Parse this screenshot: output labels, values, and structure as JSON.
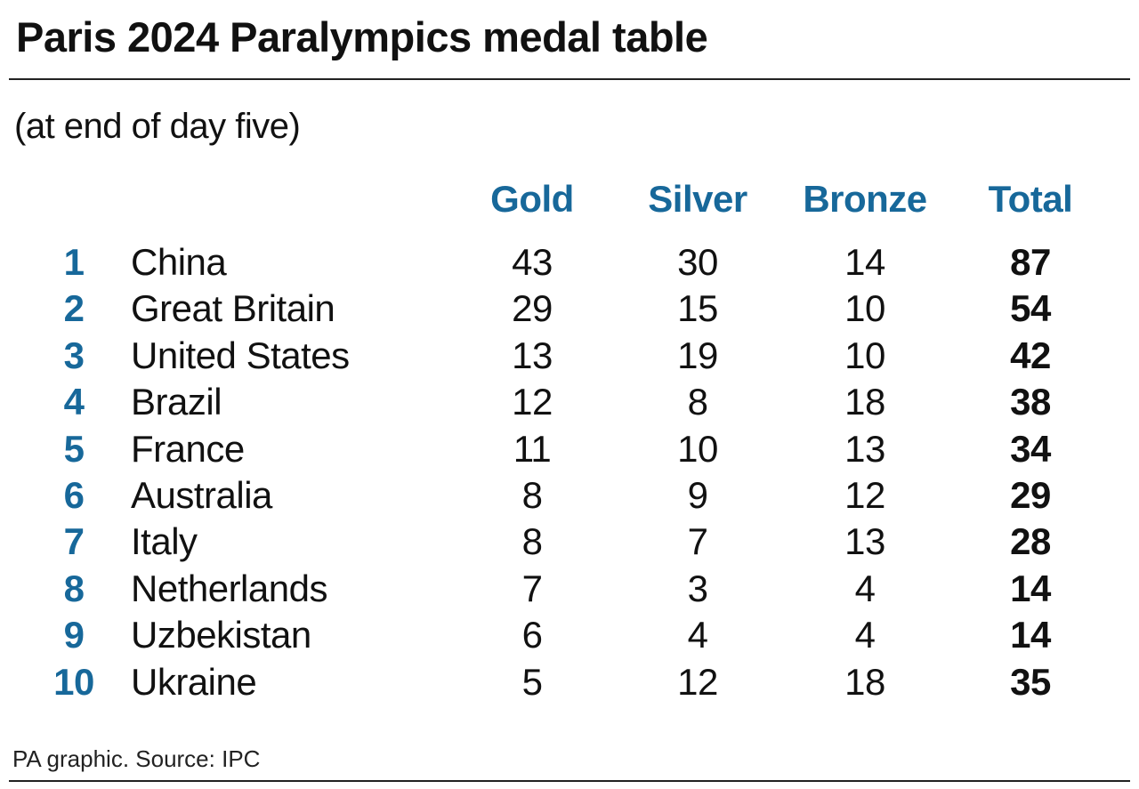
{
  "title": "Paris 2024 Paralympics medal table",
  "subtitle": "(at end of day five)",
  "footer": "PA graphic. Source: IPC",
  "colors": {
    "accent": "#17689a",
    "text": "#111111"
  },
  "chart_data": {
    "type": "table",
    "columns": [
      "Gold",
      "Silver",
      "Bronze",
      "Total"
    ],
    "rows": [
      {
        "rank": "1",
        "country": "China",
        "gold": "43",
        "silver": "30",
        "bronze": "14",
        "total": "87"
      },
      {
        "rank": "2",
        "country": "Great Britain",
        "gold": "29",
        "silver": "15",
        "bronze": "10",
        "total": "54"
      },
      {
        "rank": "3",
        "country": "United States",
        "gold": "13",
        "silver": "19",
        "bronze": "10",
        "total": "42"
      },
      {
        "rank": "4",
        "country": "Brazil",
        "gold": "12",
        "silver": "8",
        "bronze": "18",
        "total": "38"
      },
      {
        "rank": "5",
        "country": "France",
        "gold": "11",
        "silver": "10",
        "bronze": "13",
        "total": "34"
      },
      {
        "rank": "6",
        "country": "Australia",
        "gold": "8",
        "silver": "9",
        "bronze": "12",
        "total": "29"
      },
      {
        "rank": "7",
        "country": "Italy",
        "gold": "8",
        "silver": "7",
        "bronze": "13",
        "total": "28"
      },
      {
        "rank": "8",
        "country": "Netherlands",
        "gold": "7",
        "silver": "3",
        "bronze": "4",
        "total": "14"
      },
      {
        "rank": "9",
        "country": "Uzbekistan",
        "gold": "6",
        "silver": "4",
        "bronze": "4",
        "total": "14"
      },
      {
        "rank": "10",
        "country": "Ukraine",
        "gold": "5",
        "silver": "12",
        "bronze": "18",
        "total": "35"
      }
    ]
  }
}
